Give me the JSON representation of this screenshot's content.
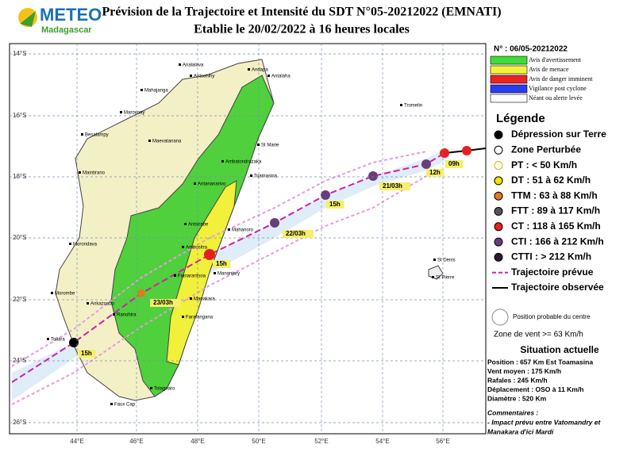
{
  "header": {
    "logo_1": "METEO",
    "logo_2": "Madagascar",
    "title": "Prévision de la Trajectoire et Intensité du SDT N°05-20212022 (EMNATI)",
    "subtitle": "Etablie le 20/02/2022 à 16 heures locales"
  },
  "map": {
    "lat_labels": [
      "14°S",
      "16°S",
      "18°S",
      "20°S",
      "22°S",
      "24°S",
      "26°S"
    ],
    "lon_labels": [
      "44°E",
      "46°E",
      "48°E",
      "50°E",
      "52°E",
      "54°E",
      "56°E"
    ],
    "places": [
      "Analalava",
      "Antsohihy",
      "Andapa",
      "Antalaha",
      "Mahajanga",
      "Marovoay",
      "Besalampy",
      "Maevatanana",
      "Ambatondrazaka",
      "St Marie",
      "Maintirano",
      "Toamasina",
      "Antananarivo",
      "Antsirabe",
      "Mahanoro",
      "Morondava",
      "Ambositra",
      "Fianarantsoa",
      "Mananjary",
      "Morombe",
      "Ankazoabo",
      "Manakara",
      "Ranohira",
      "Farafangana",
      "Toliara",
      "Tolagnaro",
      "Faux Cap",
      "Tromelin",
      "St Denis",
      "St Pierre"
    ],
    "track_labels": [
      "15h",
      "23/03h",
      "15h",
      "22/03h",
      "15h",
      "21/03h",
      "12h",
      "09h"
    ]
  },
  "legend": {
    "number": "N° : 06/05-20212022",
    "warnings": [
      "Avis d'avertissement",
      "Avis de menace",
      "Avis de danger imminent",
      "Vigilance post cyclone",
      "Néant ou alerte levée"
    ],
    "title": "Légende",
    "symbols": [
      "Dépression sur Terre",
      "Zone Perturbée",
      "PT : < 50 Km/h",
      "DT : 51 à 62 Km/h",
      "TTM : 63 à 88 Km/h",
      "FTT : 89 à 117 Km/h",
      "CT : 118 à 165 Km/h",
      "CTI : 166 à 212 Km/h",
      "CTTI : > 212 Km/h",
      "Trajectoire prévue",
      "Trajectoire observée"
    ],
    "centre": "Position probable du centre",
    "wind_zone": "Zone de vent >= 63 Km/h"
  },
  "situation": {
    "title": "Situation actuelle",
    "lines": [
      "Position : 657 Km Est Toamasina",
      "Vent moyen : 175 Km/h",
      "Rafales : 245 Km/h",
      "Déplacement : OSO à 11 Km/h",
      "Diamètre : 520 Km"
    ],
    "comments_title": "Commentaires :",
    "comments": [
      "- Impact prévu entre Vatomandry et",
      "Manakara d'ici Mardi"
    ]
  }
}
